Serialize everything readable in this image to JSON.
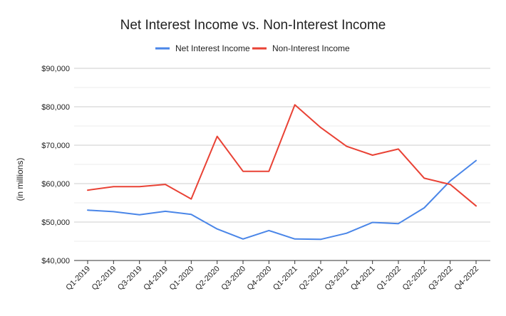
{
  "chart_data": {
    "type": "line",
    "title": "Net Interest Income vs. Non-Interest Income",
    "ylabel": "(in millions)",
    "xlabel": "",
    "categories": [
      "Q1-2019",
      "Q2-2019",
      "Q3-2019",
      "Q4-2019",
      "Q1-2020",
      "Q2-2020",
      "Q3-2020",
      "Q4-2020",
      "Q1-2021",
      "Q2-2021",
      "Q3-2021",
      "Q4-2021",
      "Q1-2022",
      "Q2-2022",
      "Q3-2022",
      "Q4-2022"
    ],
    "ylim": [
      40000,
      90000
    ],
    "yticks": [
      40000,
      50000,
      60000,
      70000,
      80000,
      90000
    ],
    "ytick_labels": [
      "$40,000",
      "$50,000",
      "$60,000",
      "$70,000",
      "$80,000",
      "$90,000"
    ],
    "grid": true,
    "legend_position": "top",
    "series": [
      {
        "name": "Net Interest Income",
        "color": "#4a86e8",
        "values": [
          53100,
          52700,
          51900,
          52800,
          52000,
          48200,
          45600,
          47800,
          45600,
          45500,
          47100,
          49900,
          49600,
          53700,
          60700,
          66000
        ]
      },
      {
        "name": "Non-Interest Income",
        "color": "#e94235",
        "values": [
          58300,
          59200,
          59200,
          59800,
          56000,
          72300,
          63200,
          63200,
          80500,
          74600,
          69700,
          67400,
          69000,
          61400,
          59800,
          54200
        ]
      }
    ]
  }
}
